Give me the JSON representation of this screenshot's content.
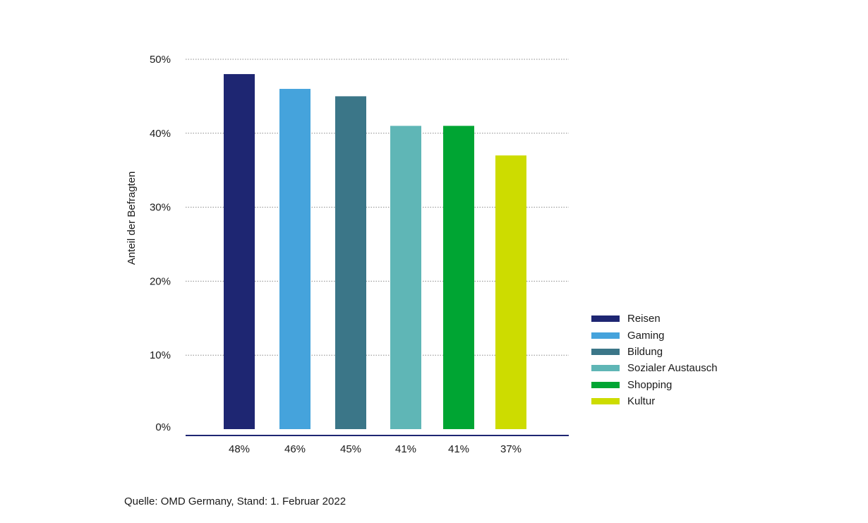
{
  "chart_data": {
    "type": "bar",
    "title": "",
    "xlabel": "",
    "ylabel": "Anteil der Befragten",
    "ylim": [
      0,
      50
    ],
    "yticks": [
      0,
      10,
      20,
      30,
      40,
      50
    ],
    "ytick_labels": [
      "0%",
      "10%",
      "20%",
      "30%",
      "40%",
      "50%"
    ],
    "grid": "horizontal-dotted",
    "legend_position": "right",
    "categories": [
      "Reisen",
      "Gaming",
      "Bildung",
      "Sozialer Austausch",
      "Shopping",
      "Kultur"
    ],
    "values": [
      48,
      46,
      45,
      41,
      41,
      37
    ],
    "value_labels": [
      "48%",
      "46%",
      "45%",
      "41%",
      "41%",
      "37%"
    ],
    "colors": [
      "#1e2672",
      "#45a3dc",
      "#3b7688",
      "#5fb6b6",
      "#00a533",
      "#cddc00"
    ]
  },
  "source_note": "Quelle: OMD Germany, Stand: 1. Februar 2022"
}
